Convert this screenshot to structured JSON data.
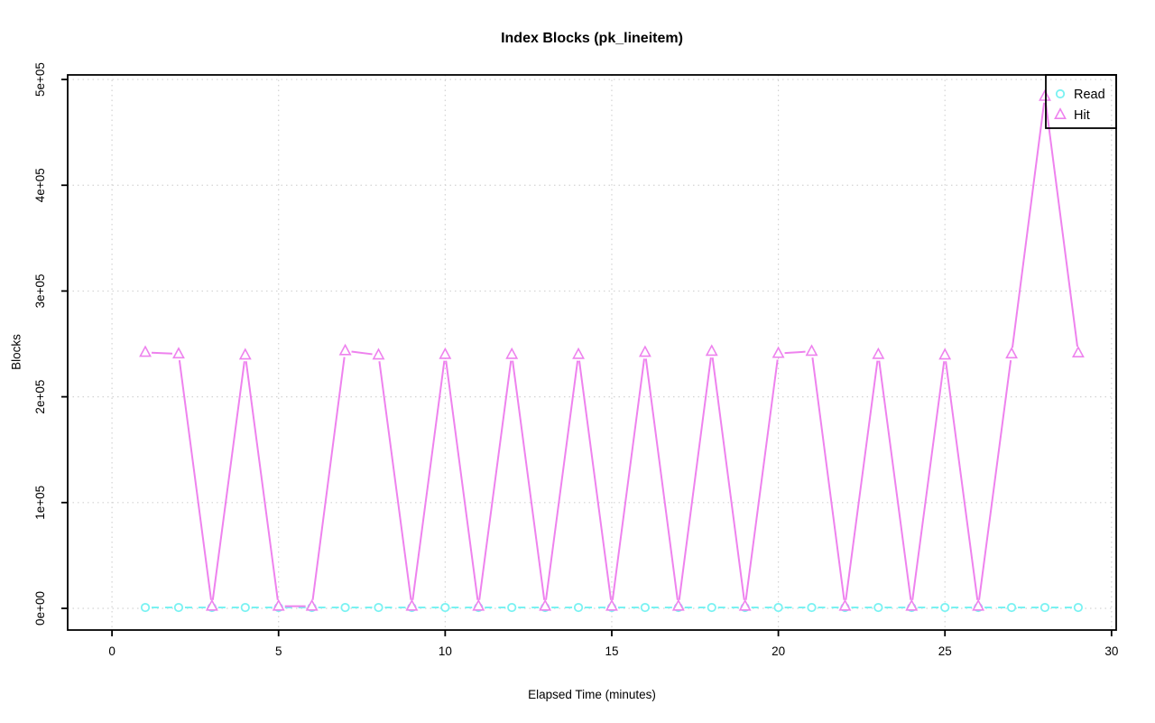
{
  "figure": {
    "background": "#ffffff",
    "title": "Index Blocks (pk_lineitem)",
    "xlabel": "Elapsed Time (minutes)",
    "ylabel": "Blocks"
  },
  "legend": {
    "position": "top-right",
    "items": [
      {
        "label": "Read",
        "marker": "circle",
        "color": "#79F2F2"
      },
      {
        "label": "Hit",
        "marker": "triangle",
        "color": "#EE82EE"
      }
    ]
  },
  "chart_data": {
    "type": "line",
    "title": "Index Blocks (pk_lineitem)",
    "xlabel": "Elapsed Time (minutes)",
    "ylabel": "Blocks",
    "grid": true,
    "grid_color": "#D3D3D3",
    "axis_color": "#000000",
    "xlim": [
      -1.33,
      30.14
    ],
    "ylim": [
      -20500,
      504300
    ],
    "xticks": [
      0,
      5,
      10,
      15,
      20,
      25,
      30
    ],
    "yticks": [
      0,
      100000,
      200000,
      300000,
      400000,
      500000
    ],
    "ytick_labels": [
      "0e+00",
      "1e+05",
      "2e+05",
      "3e+05",
      "4e+05",
      "5e+05"
    ],
    "x": [
      1,
      2,
      3,
      4,
      5,
      6,
      7,
      8,
      9,
      10,
      11,
      12,
      13,
      14,
      15,
      16,
      17,
      18,
      19,
      20,
      21,
      22,
      23,
      24,
      25,
      26,
      27,
      28,
      29
    ],
    "series": [
      {
        "name": "Read",
        "color": "#79F2F2",
        "marker": "circle",
        "linestyle": "dashed",
        "values": [
          800,
          800,
          800,
          800,
          800,
          800,
          800,
          800,
          800,
          800,
          800,
          800,
          800,
          800,
          800,
          800,
          800,
          800,
          800,
          800,
          800,
          800,
          800,
          800,
          800,
          800,
          800,
          800,
          800
        ]
      },
      {
        "name": "Hit",
        "color": "#EE82EE",
        "marker": "triangle",
        "linestyle": "solid",
        "values": [
          242000,
          240500,
          2000,
          239500,
          2000,
          2000,
          243500,
          239500,
          2000,
          240000,
          2000,
          240000,
          2000,
          240000,
          2000,
          242000,
          2000,
          243000,
          2000,
          241000,
          243000,
          2000,
          240000,
          2000,
          239500,
          2000,
          240500,
          484000,
          241500
        ]
      }
    ]
  }
}
